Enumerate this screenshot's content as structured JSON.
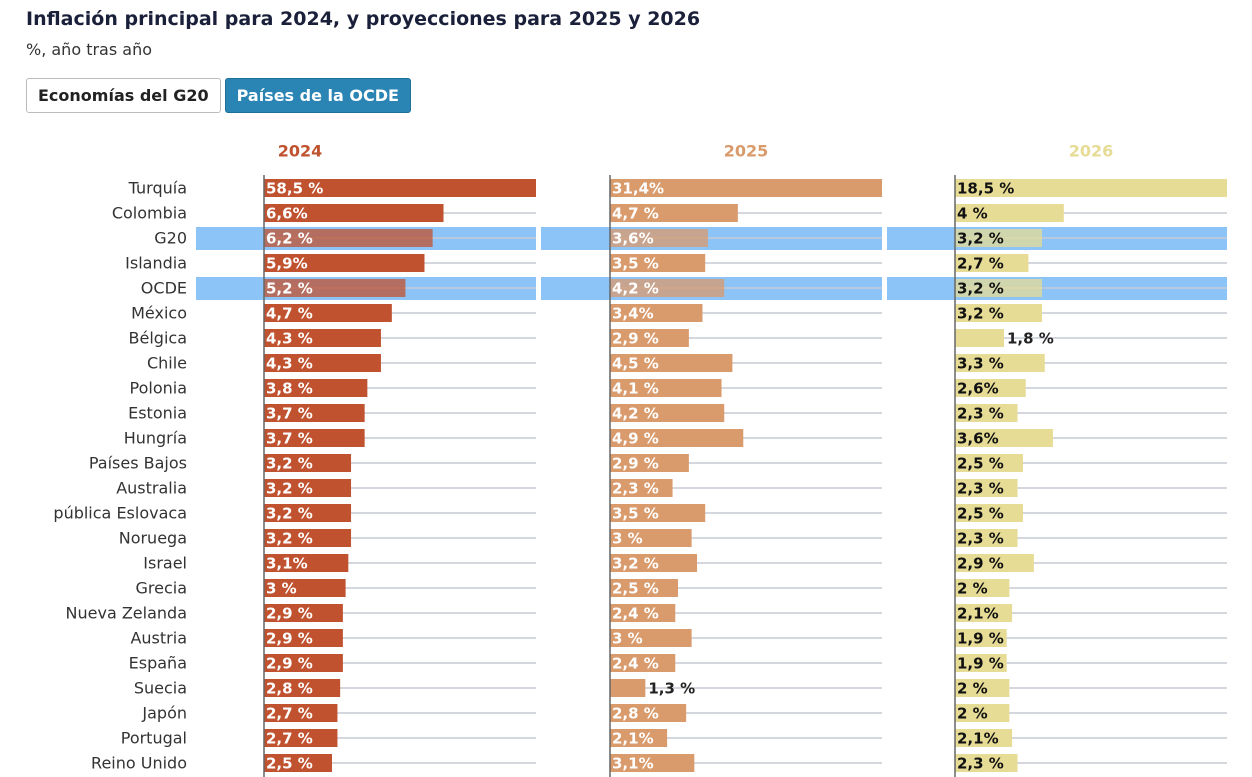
{
  "chart_data": {
    "type": "bar",
    "orientation": "horizontal",
    "title": "Inflación principal para 2024, y proyecciones para 2025 y 2026",
    "subtitle": "%, año tras año",
    "buttons": [
      "Economías del G20",
      "Países de la OCDE"
    ],
    "active_button": 1,
    "categories": [
      "Turquía",
      "Colombia",
      "G20",
      "Islandia",
      "OCDE",
      "México",
      "Bélgica",
      "Chile",
      "Polonia",
      "Estonia",
      "Hungría",
      "Países Bajos",
      "Australia",
      "pública Eslovaca",
      "Noruega",
      "Israel",
      "Grecia",
      "Nueva Zelanda",
      "Austria",
      "España",
      "Suecia",
      "Japón",
      "Portugal",
      "Reino Unido"
    ],
    "highlight_rows": [
      2,
      4
    ],
    "highlight_color": "#8cc4f8",
    "xlim": [
      0,
      10
    ],
    "series": [
      {
        "name": "2024",
        "color": "#c0522f",
        "label_color": "#ffffff",
        "values": [
          58.5,
          6.6,
          6.2,
          5.9,
          5.2,
          4.7,
          4.3,
          4.3,
          3.8,
          3.7,
          3.7,
          3.2,
          3.2,
          3.2,
          3.2,
          3.1,
          3,
          2.9,
          2.9,
          2.9,
          2.8,
          2.7,
          2.7,
          2.5
        ],
        "value_labels": [
          "58,5 %",
          "6,6%",
          "6,2 %",
          "5,9%",
          "5,2 %",
          "4,7 %",
          "4,3 %",
          "4,3 %",
          "3,8 %",
          "3,7 %",
          "3,7 %",
          "3,2 %",
          "3,2 %",
          "3,2 %",
          "3,2 %",
          "3,1%",
          "3 %",
          "2,9 %",
          "2,9 %",
          "2,9 %",
          "2,8 %",
          "2,7 %",
          "2,7 %",
          "2,5 %"
        ]
      },
      {
        "name": "2025",
        "color": "#d99a6c",
        "label_color": "#ffffff",
        "values": [
          31.4,
          4.7,
          3.6,
          3.5,
          4.2,
          3.4,
          2.9,
          4.5,
          4.1,
          4.2,
          4.9,
          2.9,
          2.3,
          3.5,
          3,
          3.2,
          2.5,
          2.4,
          3,
          2.4,
          1.3,
          2.8,
          2.1,
          3.1
        ],
        "value_labels": [
          "31,4%",
          "4,7 %",
          "3,6%",
          "3,5 %",
          "4,2 %",
          "3,4%",
          "2,9 %",
          "4,5 %",
          "4,1 %",
          "4,2 %",
          "4,9 %",
          "2,9 %",
          "2,3 %",
          "3,5 %",
          "3 %",
          "3,2 %",
          "2,5 %",
          "2,4 %",
          "3 %",
          "2,4 %",
          "1,3 %",
          "2,8 %",
          "2,1%",
          "3,1%"
        ]
      },
      {
        "name": "2026",
        "color": "#e6dc96",
        "label_color": "#111111",
        "values": [
          18.5,
          4,
          3.2,
          2.7,
          3.2,
          3.2,
          1.8,
          3.3,
          2.6,
          2.3,
          3.6,
          2.5,
          2.3,
          2.5,
          2.3,
          2.9,
          2,
          2.1,
          1.9,
          1.9,
          2,
          2,
          2.1,
          2.3
        ],
        "value_labels": [
          "18,5 %",
          "4 %",
          "3,2 %",
          "2,7 %",
          "3,2 %",
          "3,2 %",
          "1,8 %",
          "3,3 %",
          "2,6%",
          "2,3 %",
          "3,6%",
          "2,5 %",
          "2,3 %",
          "2,5 %",
          "2,3 %",
          "2,9 %",
          "2 %",
          "2,1%",
          "1,9 %",
          "1,9 %",
          "2 %",
          "2 %",
          "2,1%",
          "2,3 %"
        ]
      }
    ]
  }
}
